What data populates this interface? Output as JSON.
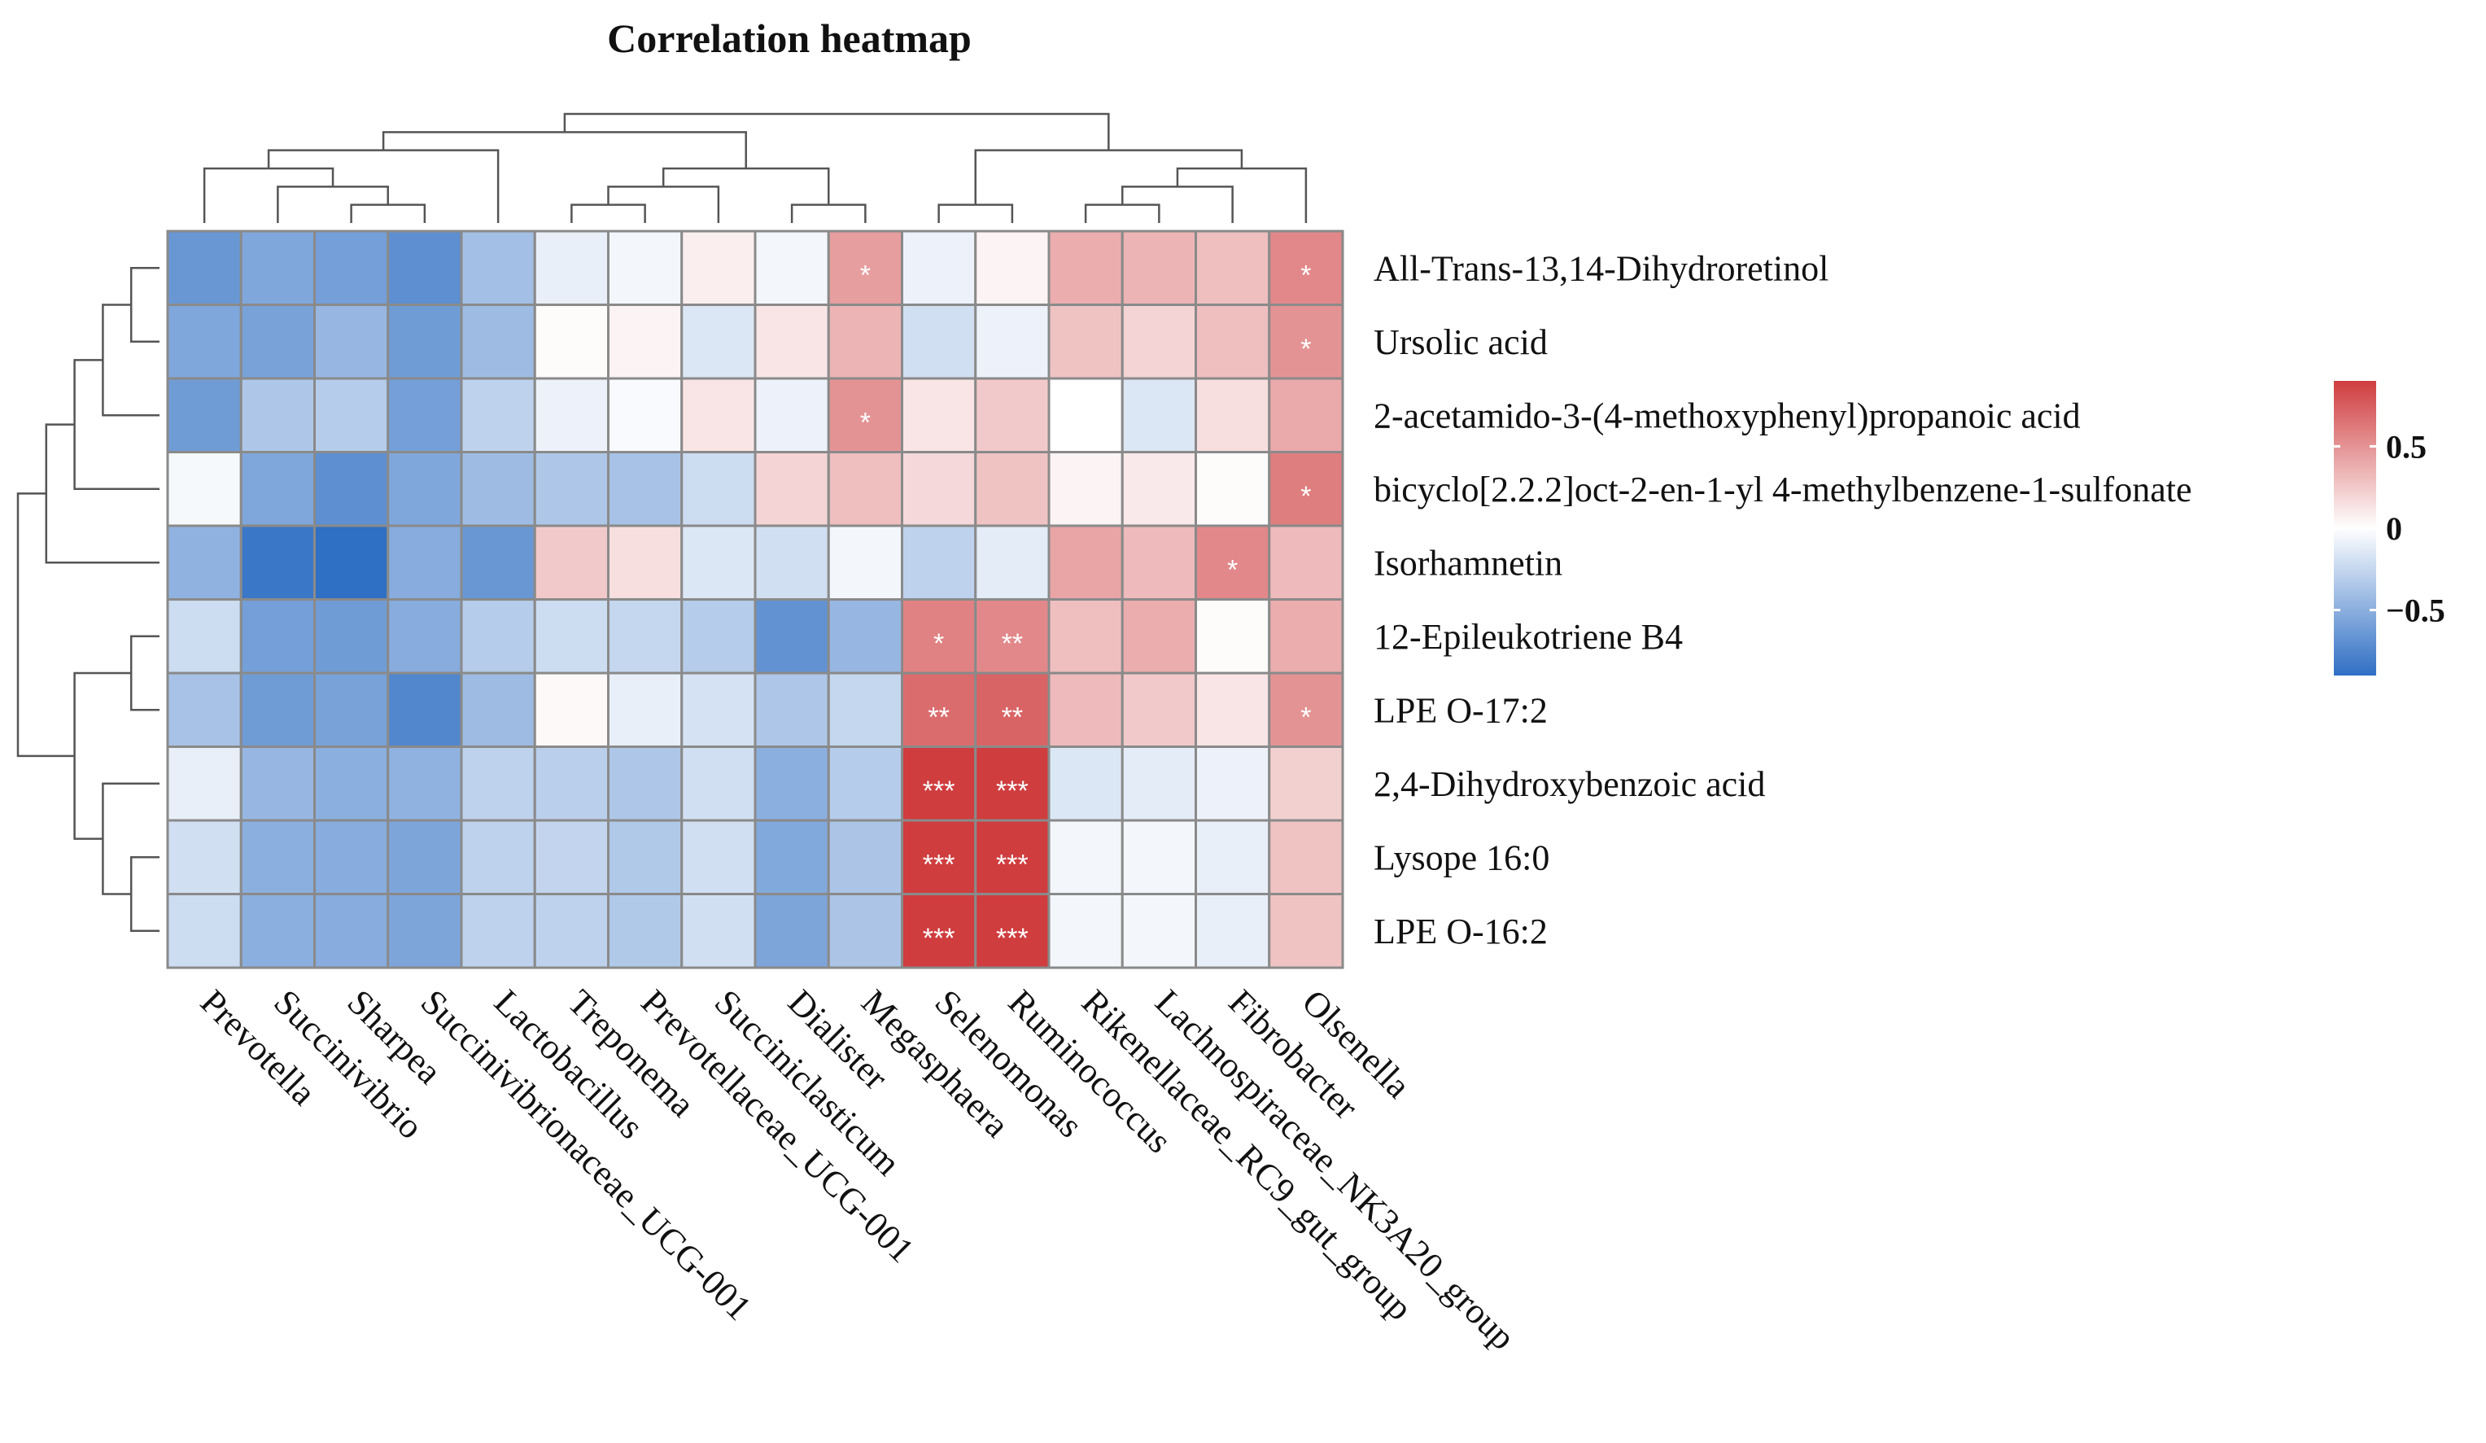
{
  "chart_data": {
    "type": "heatmap",
    "title": "Correlation heatmap",
    "rows": [
      "All-Trans-13,14-Dihydroretinol",
      "Ursolic acid",
      "2-acetamido-3-(4-methoxyphenyl)propanoic acid",
      "bicyclo[2.2.2]oct-2-en-1-yl 4-methylbenzene-1-sulfonate",
      "Isorhamnetin",
      "12-Epileukotriene B4",
      "LPE O-17:2",
      "2,4-Dihydroxybenzoic acid",
      "Lysope 16:0",
      "LPE O-16:2"
    ],
    "columns": [
      "Prevotella",
      "Succinivibrio",
      "Sharpea",
      "Succinivibrionaceae_UCG-001",
      "Lactobacillus",
      "Treponema",
      "Prevotellaceae_UCG-001",
      "Succiniclasticum",
      "Dialister",
      "Megasphaera",
      "Selenomonas",
      "Ruminococcus",
      "Rikenellaceae_RC9_gut_group",
      "Lachnospiraceae_NK3A20_group",
      "Fibrobacter",
      "Olsenella"
    ],
    "values": [
      [
        -0.65,
        -0.55,
        -0.6,
        -0.7,
        -0.4,
        -0.1,
        -0.05,
        0.08,
        -0.05,
        0.45,
        -0.08,
        0.05,
        0.38,
        0.35,
        0.3,
        0.55
      ],
      [
        -0.55,
        -0.58,
        -0.45,
        -0.62,
        -0.42,
        0.02,
        0.05,
        -0.15,
        0.12,
        0.35,
        -0.2,
        -0.08,
        0.28,
        0.2,
        0.3,
        0.5
      ],
      [
        -0.62,
        -0.35,
        -0.32,
        -0.6,
        -0.28,
        -0.08,
        -0.03,
        0.12,
        -0.08,
        0.5,
        0.12,
        0.25,
        0.0,
        -0.15,
        0.15,
        0.4
      ],
      [
        -0.04,
        -0.55,
        -0.7,
        -0.55,
        -0.42,
        -0.35,
        -0.38,
        -0.22,
        0.2,
        0.3,
        0.18,
        0.28,
        0.05,
        0.1,
        0.02,
        0.6
      ],
      [
        -0.48,
        -0.85,
        -0.9,
        -0.52,
        -0.65,
        0.25,
        0.15,
        -0.15,
        -0.2,
        -0.05,
        -0.28,
        -0.12,
        0.42,
        0.32,
        0.55,
        0.32
      ],
      [
        -0.22,
        -0.6,
        -0.62,
        -0.52,
        -0.32,
        -0.22,
        -0.25,
        -0.32,
        -0.68,
        -0.45,
        0.58,
        0.55,
        0.3,
        0.38,
        0.02,
        0.38
      ],
      [
        -0.38,
        -0.62,
        -0.58,
        -0.75,
        -0.42,
        0.03,
        -0.1,
        -0.18,
        -0.35,
        -0.25,
        0.68,
        0.72,
        0.32,
        0.25,
        0.12,
        0.5
      ],
      [
        -0.1,
        -0.45,
        -0.5,
        -0.48,
        -0.28,
        -0.3,
        -0.35,
        -0.2,
        -0.5,
        -0.32,
        0.92,
        0.9,
        -0.15,
        -0.12,
        -0.08,
        0.22
      ],
      [
        -0.2,
        -0.5,
        -0.52,
        -0.56,
        -0.28,
        -0.26,
        -0.34,
        -0.2,
        -0.54,
        -0.36,
        0.94,
        0.92,
        -0.05,
        -0.05,
        -0.1,
        0.28
      ],
      [
        -0.22,
        -0.5,
        -0.52,
        -0.56,
        -0.28,
        -0.28,
        -0.34,
        -0.2,
        -0.56,
        -0.36,
        0.95,
        0.93,
        -0.05,
        -0.05,
        -0.1,
        0.28
      ]
    ],
    "significance": [
      [
        "",
        "",
        "",
        "",
        "",
        "",
        "",
        "",
        "",
        "*",
        "",
        "",
        "",
        "",
        "",
        "*"
      ],
      [
        "",
        "",
        "",
        "",
        "",
        "",
        "",
        "",
        "",
        "",
        "",
        "",
        "",
        "",
        "",
        "*"
      ],
      [
        "",
        "",
        "",
        "",
        "",
        "",
        "",
        "",
        "",
        "*",
        "",
        "",
        "",
        "",
        "",
        ""
      ],
      [
        "",
        "",
        "",
        "",
        "",
        "",
        "",
        "",
        "",
        "",
        "",
        "",
        "",
        "",
        "",
        "*"
      ],
      [
        "",
        "",
        "",
        "",
        "",
        "",
        "",
        "",
        "",
        "",
        "",
        "",
        "",
        "",
        "*",
        ""
      ],
      [
        "",
        "",
        "",
        "",
        "",
        "",
        "",
        "",
        "",
        "",
        "*",
        "**",
        "",
        "",
        "",
        ""
      ],
      [
        "",
        "",
        "",
        "",
        "",
        "",
        "",
        "",
        "",
        "",
        "**",
        "**",
        "",
        "",
        "",
        "*"
      ],
      [
        "",
        "",
        "",
        "",
        "",
        "",
        "",
        "",
        "",
        "",
        "***",
        "***",
        "",
        "",
        "",
        ""
      ],
      [
        "",
        "",
        "",
        "",
        "",
        "",
        "",
        "",
        "",
        "",
        "***",
        "***",
        "",
        "",
        "",
        ""
      ],
      [
        "",
        "",
        "",
        "",
        "",
        "",
        "",
        "",
        "",
        "",
        "***",
        "***",
        "",
        "",
        "",
        ""
      ]
    ],
    "color_scale": {
      "low": "#2f6fc4",
      "mid": "#ffffff",
      "high": "#cf3d3f",
      "vmin": -0.9,
      "vmax": 0.9
    },
    "legend": {
      "ticks": [
        0.5,
        0,
        -0.5
      ],
      "tick_labels": [
        "0.5",
        "0",
        "−0.5"
      ],
      "placement": "right"
    },
    "column_dendrogram": [
      [
        2,
        3
      ],
      [
        1,
        16
      ],
      [
        0,
        17
      ],
      [
        4,
        18
      ],
      [
        5,
        6
      ],
      [
        20,
        7
      ],
      [
        8,
        9
      ],
      [
        21,
        22
      ],
      [
        19,
        23
      ],
      [
        10,
        11
      ],
      [
        12,
        13
      ],
      [
        26,
        14
      ],
      [
        27,
        15
      ],
      [
        25,
        28
      ],
      [
        24,
        29
      ]
    ],
    "row_dendrogram": [
      [
        0,
        1
      ],
      [
        10,
        2
      ],
      [
        11,
        3
      ],
      [
        12,
        4
      ],
      [
        8,
        9
      ],
      [
        7,
        14
      ],
      [
        5,
        6
      ],
      [
        16,
        15
      ],
      [
        13,
        17
      ]
    ]
  }
}
